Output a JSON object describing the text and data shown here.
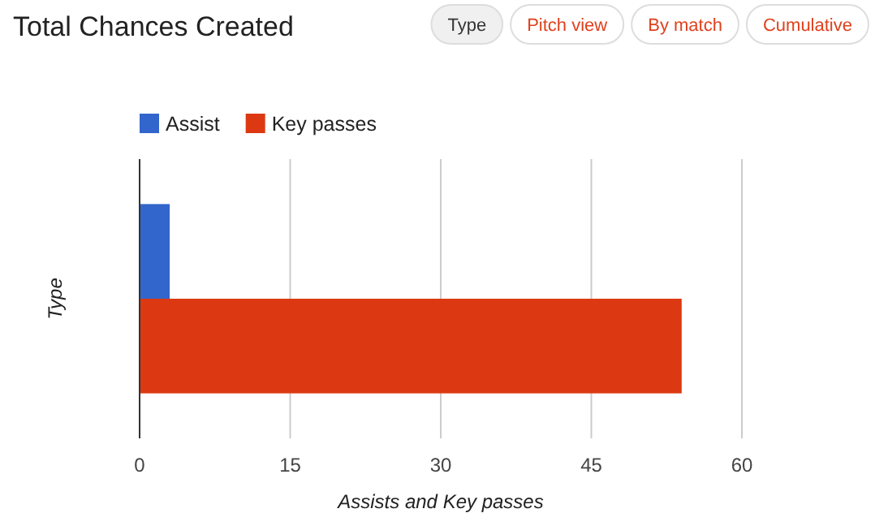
{
  "chart_data": {
    "type": "bar",
    "orientation": "horizontal",
    "title": "Total Chances Created",
    "ylabel": "Type",
    "xlabel": "Assists and Key passes",
    "categories": [
      null
    ],
    "series": [
      {
        "name": "Assist",
        "color": "#3366cc",
        "values": [
          3
        ]
      },
      {
        "name": "Key passes",
        "color": "#dc3912",
        "values": [
          54
        ]
      }
    ],
    "xlim": [
      0,
      60
    ],
    "xticks": [
      0,
      15,
      30,
      45,
      60
    ],
    "grid": "x",
    "legend": "top left",
    "annotations": [
      "Type",
      "Pitch view",
      "By match",
      "Cumulative"
    ]
  }
}
